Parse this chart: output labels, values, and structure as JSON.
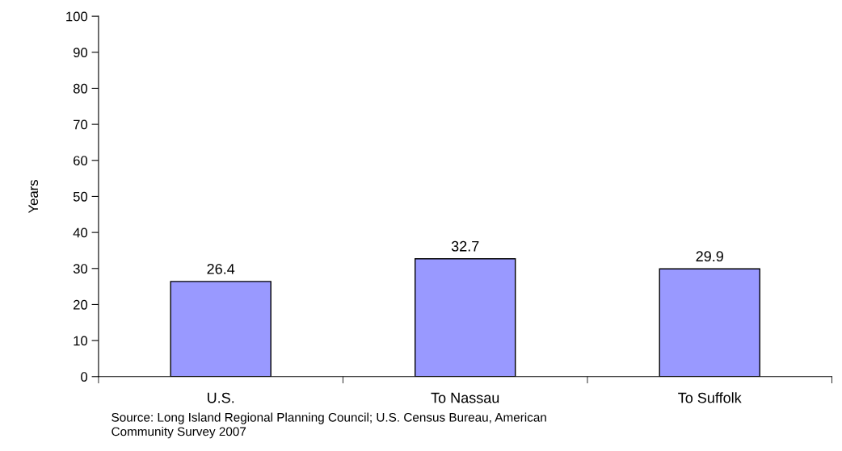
{
  "chart_data": {
    "type": "bar",
    "ylabel": "Years",
    "categories": [
      "U.S.",
      "To Nassau",
      "To Suffolk"
    ],
    "values": [
      26.4,
      32.7,
      29.9
    ],
    "color": "#9999ff",
    "data_labels": true,
    "grid": false,
    "legend": false,
    "ylim": [
      0,
      100
    ],
    "yticks": [
      0,
      10,
      20,
      30,
      40,
      50,
      60,
      70,
      80,
      90,
      100
    ],
    "annotations": [
      "Source: Long Island Regional Planning Council; U.S. Census Bureau, American\nCommunity Survey 2007"
    ]
  }
}
